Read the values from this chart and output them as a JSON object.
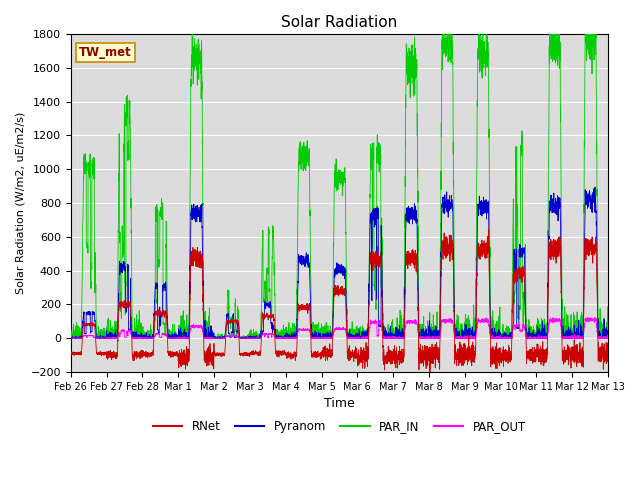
{
  "title": "Solar Radiation",
  "ylabel": "Solar Radiation (W/m2, uE/m2/s)",
  "xlabel": "Time",
  "station_label": "TW_met",
  "ylim": [
    -200,
    1800
  ],
  "yticks": [
    -200,
    0,
    200,
    400,
    600,
    800,
    1000,
    1200,
    1400,
    1600,
    1800
  ],
  "colors": {
    "RNet": "#cc0000",
    "Pyranom": "#0000cc",
    "PAR_IN": "#00cc00",
    "PAR_OUT": "#ff00ff"
  },
  "background_color": "#dcdcdc",
  "n_days": 15,
  "tick_labels": [
    "Feb 26",
    "Feb 27",
    "Feb 28",
    "Mar 1",
    "Mar 2",
    "Mar 3",
    "Mar 4",
    "Mar 5",
    "Mar 6",
    "Mar 7",
    "Mar 8",
    "Mar 9",
    "Mar 10",
    "Mar 11",
    "Mar 12",
    "Mar 13"
  ],
  "par_in_peaks": [
    1020,
    1350,
    750,
    1650,
    270,
    640,
    1080,
    950,
    1100,
    1630,
    1720,
    1700,
    1120,
    1730,
    1790
  ],
  "pyranom_peaks": [
    150,
    420,
    310,
    740,
    140,
    200,
    460,
    400,
    730,
    730,
    790,
    775,
    510,
    790,
    825
  ],
  "rnet_peaks": [
    80,
    200,
    150,
    480,
    100,
    130,
    185,
    280,
    460,
    470,
    535,
    530,
    380,
    530,
    540
  ],
  "par_out_peaks": [
    15,
    45,
    25,
    70,
    15,
    25,
    50,
    55,
    95,
    95,
    105,
    105,
    75,
    105,
    110
  ],
  "rnet_nights": [
    -90,
    -100,
    -95,
    -110,
    -95,
    -90,
    -100,
    -95,
    -110,
    -105,
    -100,
    -100,
    -100,
    -100,
    -95
  ]
}
